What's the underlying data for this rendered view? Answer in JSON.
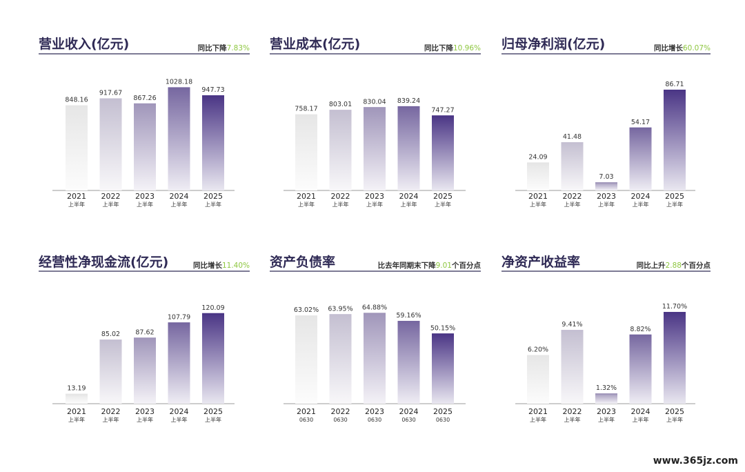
{
  "colors": {
    "title": "#2f2a55",
    "highlight": "#8dc63f",
    "bar_light": "#e6e6e6",
    "bar_dark": "#4a3585"
  },
  "watermark": "www.365jz.com",
  "chart_data": [
    {
      "type": "bar",
      "title": "营业收入(亿元)",
      "note": {
        "prefix": "同比下降",
        "value": "7.83%",
        "suffix": ""
      },
      "categories": [
        "2021",
        "2022",
        "2023",
        "2024",
        "2025"
      ],
      "category_sublabels": [
        "上半年",
        "上半年",
        "上半年",
        "上半年",
        "上半年"
      ],
      "values": [
        848.16,
        917.67,
        867.26,
        1028.18,
        947.73
      ],
      "value_labels": [
        "848.16",
        "917.67",
        "867.26",
        "1028.18",
        "947.73"
      ],
      "ylim": [
        0,
        1100
      ]
    },
    {
      "type": "bar",
      "title": "营业成本(亿元)",
      "note": {
        "prefix": "同比下降",
        "value": "10.96%",
        "suffix": ""
      },
      "categories": [
        "2021",
        "2022",
        "2023",
        "2024",
        "2025"
      ],
      "category_sublabels": [
        "上半年",
        "上半年",
        "上半年",
        "上半年",
        "上半年"
      ],
      "values": [
        758.17,
        803.01,
        830.04,
        839.24,
        747.27
      ],
      "value_labels": [
        "758.17",
        "803.01",
        "830.04",
        "839.24",
        "747.27"
      ],
      "ylim": [
        0,
        1100
      ]
    },
    {
      "type": "bar",
      "title": "归母净利润(亿元)",
      "note": {
        "prefix": "同比增长",
        "value": "60.07%",
        "suffix": ""
      },
      "categories": [
        "2021",
        "2022",
        "2023",
        "2024",
        "2025"
      ],
      "category_sublabels": [
        "上半年",
        "上半年",
        "上半年",
        "上半年",
        "上半年"
      ],
      "values": [
        24.09,
        41.48,
        7.03,
        54.17,
        86.71
      ],
      "value_labels": [
        "24.09",
        "41.48",
        "7.03",
        "54.17",
        "86.71"
      ],
      "ylim": [
        0,
        95
      ]
    },
    {
      "type": "bar",
      "title": "经营性净现金流(亿元)",
      "note": {
        "prefix": "同比增长",
        "value": "11.40%",
        "suffix": ""
      },
      "categories": [
        "2021",
        "2022",
        "2023",
        "2024",
        "2025"
      ],
      "category_sublabels": [
        "上半年",
        "上半年",
        "上半年",
        "上半年",
        "上半年"
      ],
      "values": [
        13.19,
        85.02,
        87.62,
        107.79,
        120.09
      ],
      "value_labels": [
        "13.19",
        "85.02",
        "87.62",
        "107.79",
        "120.09"
      ],
      "ylim": [
        0,
        130
      ]
    },
    {
      "type": "bar",
      "title": "资产负债率",
      "note": {
        "prefix": "比去年同期末下降",
        "value": "9.01",
        "suffix": "个百分点"
      },
      "categories": [
        "2021",
        "2022",
        "2023",
        "2024",
        "2025"
      ],
      "category_sublabels": [
        "0630",
        "0630",
        "0630",
        "0630",
        "0630"
      ],
      "values": [
        63.02,
        63.95,
        64.88,
        59.16,
        50.15
      ],
      "value_labels": [
        "63.02%",
        "63.95%",
        "64.88%",
        "59.16%",
        "50.15%"
      ],
      "ylim": [
        0,
        70
      ]
    },
    {
      "type": "bar",
      "title": "净资产收益率",
      "note": {
        "prefix": "同比上升",
        "value": "2.88",
        "suffix": "个百分点"
      },
      "categories": [
        "2021",
        "2022",
        "2023",
        "2024",
        "2025"
      ],
      "category_sublabels": [
        "上半年",
        "上半年",
        "上半年",
        "上半年",
        "上半年"
      ],
      "values": [
        6.2,
        9.41,
        1.32,
        8.82,
        11.7
      ],
      "value_labels": [
        "6.20%",
        "9.41%",
        "1.32%",
        "8.82%",
        "11.70%"
      ],
      "ylim": [
        0,
        12.5
      ]
    }
  ]
}
